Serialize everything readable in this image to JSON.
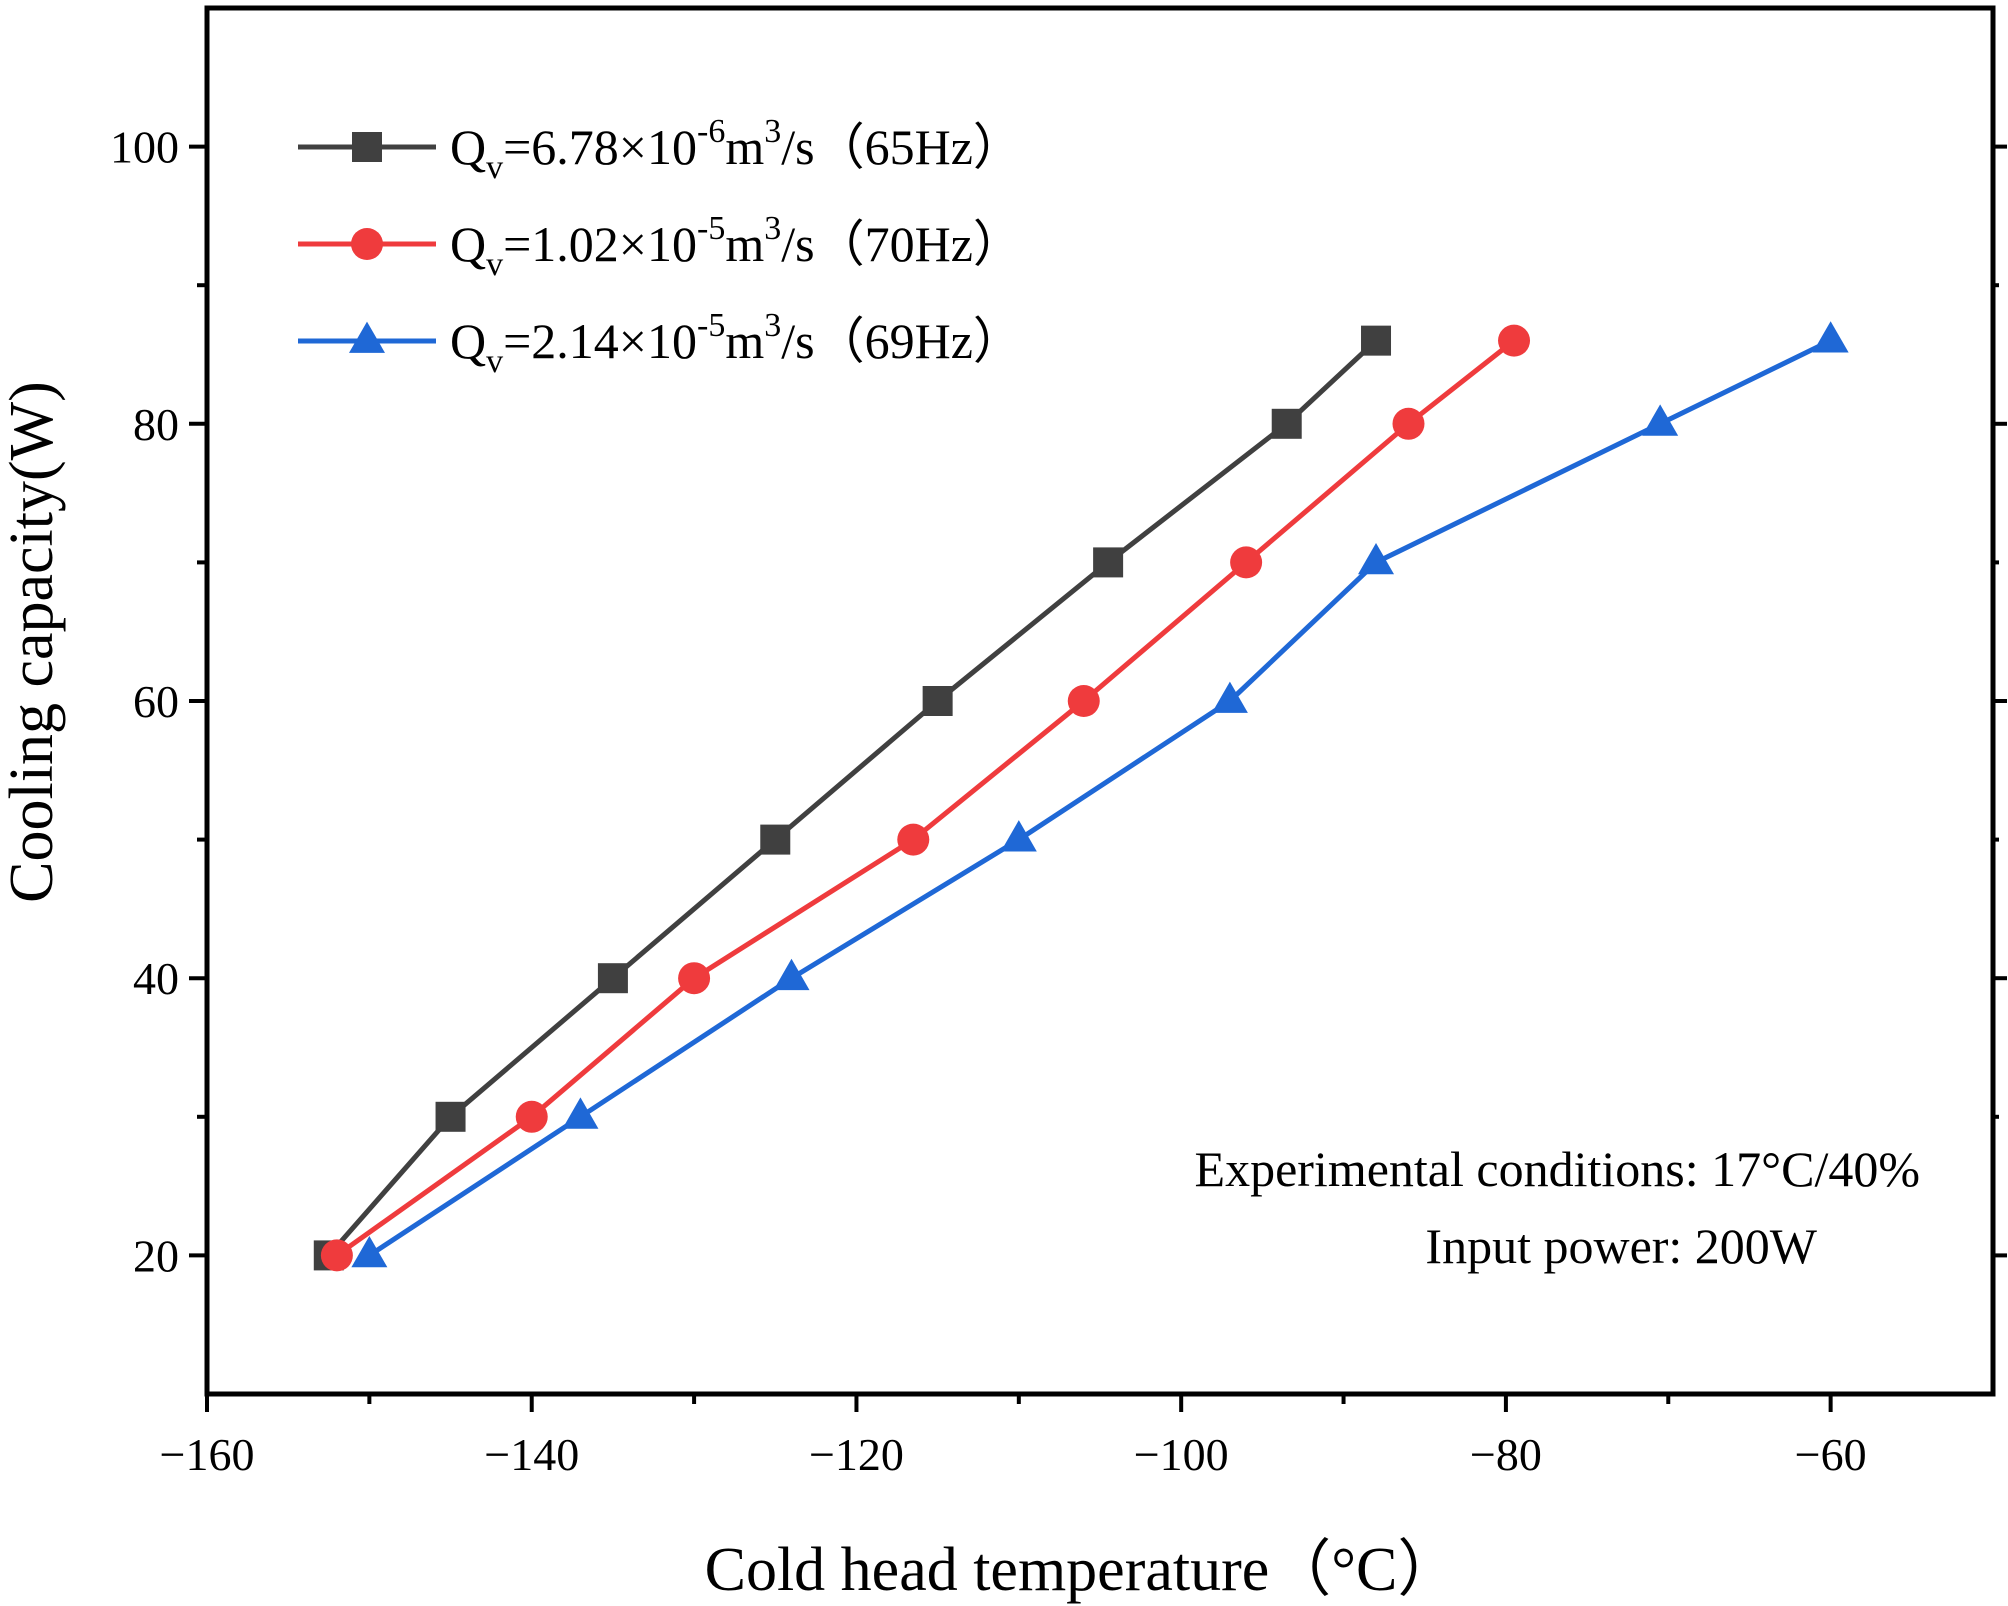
{
  "chart_data": {
    "type": "line",
    "title": "",
    "xlabel": "Cold head temperature（°C）",
    "ylabel": "Cooling capacity(W)",
    "xlim": [
      -160,
      -50
    ],
    "ylim": [
      10,
      110
    ],
    "xticks": [
      -160,
      -140,
      -120,
      -100,
      -80,
      -60
    ],
    "xtick_labels": [
      "−160",
      "−140",
      "−120",
      "−100",
      "−80",
      "−60"
    ],
    "yticks": [
      20,
      40,
      60,
      80,
      100
    ],
    "ytick_labels": [
      "20",
      "40",
      "60",
      "80",
      "100"
    ],
    "grid": false,
    "legend_position": "top-left",
    "series": [
      {
        "name": "Qv=6.78×10-6m3/s（65Hz）",
        "label_parts": [
          "Q",
          "v",
          "=6.78×10",
          "-6",
          "m",
          "3",
          "/s（65Hz）"
        ],
        "marker": "square",
        "color": "#404040",
        "x": [
          -152.5,
          -145,
          -135,
          -125,
          -115,
          -104.5,
          -93.5,
          -88
        ],
        "y": [
          20,
          30,
          40,
          50,
          60,
          70,
          80,
          86
        ]
      },
      {
        "name": "Qv=1.02×10-5m3/s（70Hz）",
        "label_parts": [
          "Q",
          "v",
          "=1.02×10",
          "-5",
          "m",
          "3",
          "/s（70Hz）"
        ],
        "marker": "circle",
        "color": "#ef3b3d",
        "x": [
          -152,
          -140,
          -130,
          -116.5,
          -106,
          -96,
          -86,
          -79.5
        ],
        "y": [
          20,
          30,
          40,
          50,
          60,
          70,
          80,
          86
        ]
      },
      {
        "name": "Qv=2.14×10-5m3/s（69Hz）",
        "label_parts": [
          "Q",
          "v",
          "=2.14×10",
          "-5",
          "m",
          "3",
          "/s（69Hz）"
        ],
        "marker": "triangle",
        "color": "#1f68d6",
        "x": [
          -150,
          -137,
          -124,
          -110,
          -97,
          -88,
          -70.5,
          -60
        ],
        "y": [
          20,
          30,
          40,
          50,
          60,
          70,
          80,
          86
        ]
      }
    ],
    "annotations": [
      "Experimental conditions: 17°C/40%",
      "Input power: 200W"
    ]
  }
}
